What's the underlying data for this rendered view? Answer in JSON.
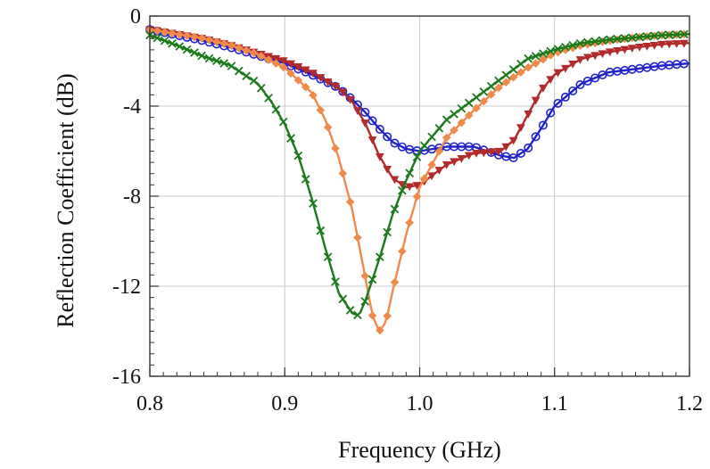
{
  "chart_data": {
    "type": "line",
    "title": "",
    "xlabel": "Frequency (GHz)",
    "ylabel": "Reflection Coefficient (dB)",
    "xlim": [
      0.8,
      1.2
    ],
    "ylim": [
      -16,
      0
    ],
    "xticks": [
      "0.8",
      "0.9",
      "1.0",
      "1.1",
      "1.2"
    ],
    "yticks": [
      "0",
      "-4",
      "-8",
      "-12",
      "-16"
    ],
    "grid": true,
    "legend": "none",
    "series": [
      {
        "color": "#2222cc",
        "marker": "circle",
        "x": [
          0.8,
          0.82,
          0.84,
          0.86,
          0.88,
          0.9,
          0.92,
          0.94,
          0.95,
          0.96,
          0.97,
          0.98,
          0.99,
          1.0,
          1.02,
          1.04,
          1.06,
          1.07,
          1.08,
          1.09,
          1.1,
          1.12,
          1.14,
          1.16,
          1.18,
          1.2
        ],
        "y": [
          -0.6,
          -0.85,
          -1.1,
          -1.4,
          -1.75,
          -2.1,
          -2.6,
          -3.2,
          -3.7,
          -4.3,
          -5.0,
          -5.6,
          -5.9,
          -6.0,
          -5.8,
          -5.8,
          -6.2,
          -6.3,
          -5.9,
          -5.0,
          -4.0,
          -3.0,
          -2.5,
          -2.35,
          -2.2,
          -2.1
        ]
      },
      {
        "color": "#b22a2a",
        "marker": "triangle-down",
        "x": [
          0.8,
          0.82,
          0.84,
          0.86,
          0.88,
          0.9,
          0.92,
          0.94,
          0.95,
          0.96,
          0.97,
          0.98,
          0.99,
          1.0,
          1.02,
          1.04,
          1.06,
          1.07,
          1.08,
          1.09,
          1.1,
          1.12,
          1.14,
          1.16,
          1.18,
          1.2
        ],
        "y": [
          -0.6,
          -0.8,
          -1.0,
          -1.3,
          -1.65,
          -2.0,
          -2.5,
          -3.2,
          -3.8,
          -4.8,
          -6.2,
          -7.2,
          -7.6,
          -7.5,
          -6.6,
          -6.1,
          -6.0,
          -5.5,
          -4.4,
          -3.3,
          -2.6,
          -1.9,
          -1.6,
          -1.4,
          -1.25,
          -1.2
        ]
      },
      {
        "color": "#f08a4b",
        "marker": "diamond",
        "x": [
          0.8,
          0.82,
          0.84,
          0.86,
          0.88,
          0.9,
          0.92,
          0.93,
          0.94,
          0.95,
          0.96,
          0.965,
          0.97,
          0.975,
          0.98,
          0.99,
          1.0,
          1.02,
          1.04,
          1.06,
          1.08,
          1.1,
          1.12,
          1.14,
          1.16,
          1.18,
          1.2
        ],
        "y": [
          -0.6,
          -0.8,
          -1.0,
          -1.3,
          -1.7,
          -2.3,
          -3.4,
          -4.6,
          -6.3,
          -8.6,
          -11.7,
          -13.3,
          -14.0,
          -13.6,
          -12.2,
          -9.7,
          -7.6,
          -5.4,
          -4.2,
          -3.1,
          -2.3,
          -1.65,
          -1.3,
          -1.1,
          -0.95,
          -0.85,
          -0.8
        ]
      },
      {
        "color": "#1b7a1b",
        "marker": "x",
        "x": [
          0.8,
          0.82,
          0.84,
          0.86,
          0.87,
          0.88,
          0.89,
          0.9,
          0.91,
          0.92,
          0.93,
          0.94,
          0.95,
          0.955,
          0.96,
          0.97,
          0.98,
          0.99,
          1.0,
          1.02,
          1.04,
          1.06,
          1.08,
          1.1,
          1.12,
          1.14,
          1.16,
          1.18,
          1.2
        ],
        "y": [
          -0.85,
          -1.3,
          -1.8,
          -2.2,
          -2.6,
          -3.0,
          -3.8,
          -4.8,
          -6.2,
          -8.1,
          -10.3,
          -12.3,
          -13.2,
          -13.3,
          -12.6,
          -10.8,
          -8.8,
          -7.3,
          -6.0,
          -4.6,
          -3.7,
          -2.8,
          -1.9,
          -1.5,
          -1.2,
          -1.05,
          -0.95,
          -0.85,
          -0.8
        ]
      }
    ]
  }
}
